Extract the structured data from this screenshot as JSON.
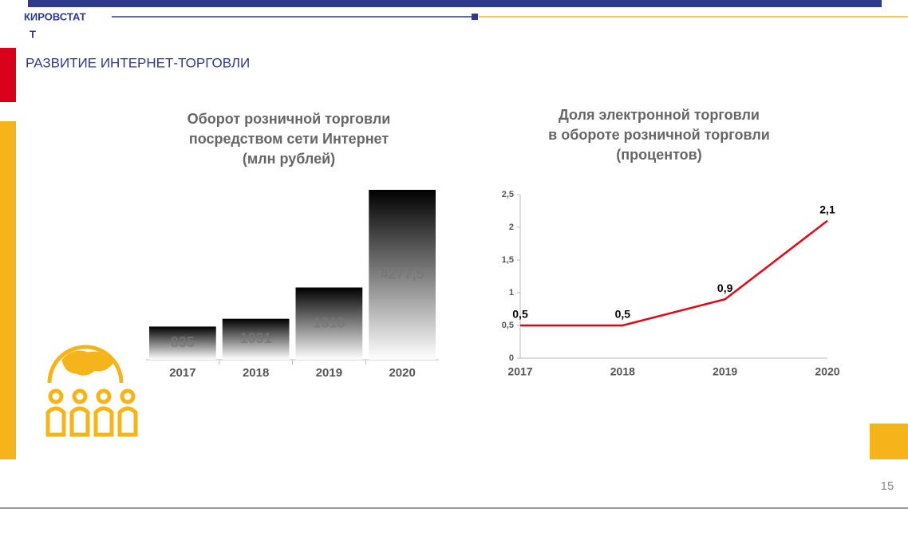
{
  "header": {
    "org": [
      "КИРОВСТАТ",
      "Т"
    ],
    "title": "РАЗВИТИЕ ИНТЕРНЕТ-ТОРГОВЛИ",
    "page": "15"
  },
  "chart_data": [
    {
      "type": "bar",
      "title": [
        "Оборот розничной торговли",
        "посредством сети Интернет",
        "(млн рублей)"
      ],
      "categories": [
        "2017",
        "2018",
        "2019",
        "2020"
      ],
      "values": [
        835,
        1031,
        1818,
        4277.5
      ],
      "value_labels": [
        "835",
        "1031",
        "1818",
        "4277,5"
      ]
    },
    {
      "type": "line",
      "title": [
        "Доля электронной торговли",
        "в обороте розничной торговли",
        "(процентов)"
      ],
      "categories": [
        "2017",
        "2018",
        "2019",
        "2020"
      ],
      "values": [
        0.5,
        0.5,
        0.9,
        2.1
      ],
      "value_labels": [
        "0,5",
        "0,5",
        "0,9",
        "2,1"
      ],
      "color": "#e30613",
      "ylim": [
        0,
        2.5
      ],
      "yticks": [
        0,
        {
          "value": 0.5,
          "label": "0,5"
        },
        1,
        {
          "value": 1.5,
          "label": "1,5"
        },
        2,
        {
          "value": 2.5,
          "label": "2,5"
        }
      ]
    }
  ]
}
